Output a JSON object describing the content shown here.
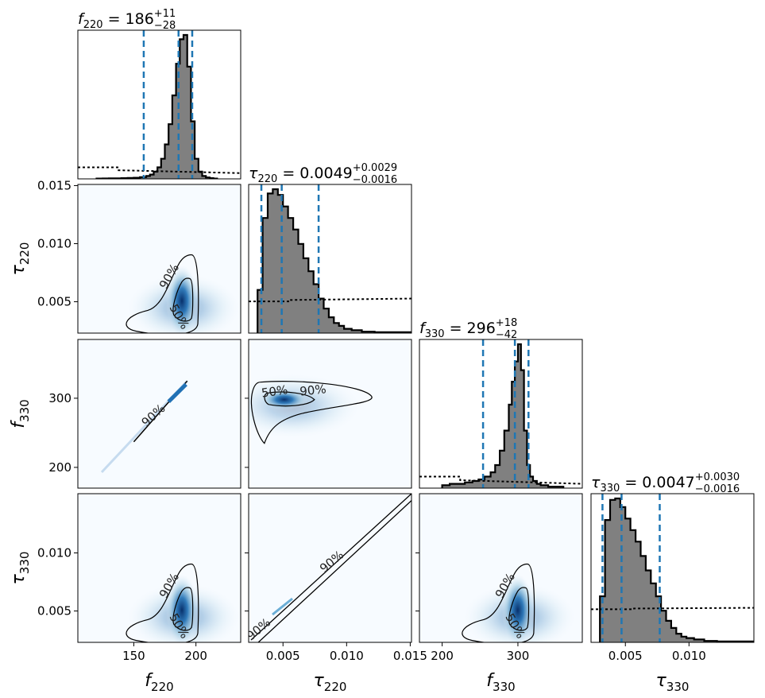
{
  "chart_data": {
    "type": "corner",
    "parameters": [
      {
        "id": "f220",
        "symbol": "f",
        "sub": "220",
        "range": [
          105,
          236
        ],
        "ticks": [
          150,
          200
        ],
        "tick_labels": [
          "150",
          "200"
        ],
        "title": {
          "median": "186",
          "plus": "+11",
          "minus": "−28"
        },
        "quantiles": [
          158,
          186,
          197
        ]
      },
      {
        "id": "tau220",
        "symbol": "τ",
        "sub": "220",
        "range": [
          0.0023,
          0.0151
        ],
        "ticks": [
          0.005,
          0.01,
          0.015
        ],
        "tick_labels": [
          "0.005",
          "0.010",
          "0.015"
        ],
        "title": {
          "median": "0.0049",
          "plus": "+0.0029",
          "minus": "−0.0016"
        },
        "quantiles": [
          0.0033,
          0.0049,
          0.0078
        ]
      },
      {
        "id": "f330",
        "symbol": "f",
        "sub": "330",
        "range": [
          170,
          385
        ],
        "ticks": [
          200,
          300
        ],
        "tick_labels": [
          "200",
          "300"
        ],
        "title": {
          "median": "296",
          "plus": "+18",
          "minus": "−42"
        },
        "quantiles": [
          254,
          296,
          314
        ]
      },
      {
        "id": "tau330",
        "symbol": "τ",
        "sub": "330",
        "range": [
          0.0023,
          0.0151
        ],
        "ticks": [
          0.005,
          0.01
        ],
        "tick_labels": [
          "0.005",
          "0.010"
        ],
        "title": {
          "median": "0.0047",
          "plus": "+0.0030",
          "minus": "−0.0016"
        },
        "quantiles": [
          0.0032,
          0.0047,
          0.0077
        ]
      }
    ],
    "diag_y_ticks": {
      "param": "tau220",
      "ticks": [
        0.005,
        0.01,
        0.015
      ]
    },
    "histograms": [
      {
        "param": "f220",
        "bins": [
          120,
          125,
          130,
          135,
          140,
          145,
          150,
          155,
          160,
          163,
          166,
          169,
          172,
          175,
          178,
          181,
          184,
          187,
          190,
          193,
          196,
          199,
          202,
          205,
          208,
          211,
          214
        ],
        "heights": [
          0.2,
          0.3,
          0.4,
          0.4,
          0.5,
          0.6,
          0.8,
          1.2,
          2,
          3,
          5,
          8,
          14,
          24,
          38,
          58,
          80,
          97,
          100,
          78,
          40,
          14,
          5,
          2,
          1,
          0.5,
          0.2
        ]
      },
      {
        "param": "tau220",
        "bins": [
          0.003,
          0.0034,
          0.0038,
          0.0042,
          0.0046,
          0.005,
          0.0054,
          0.0058,
          0.0062,
          0.0066,
          0.007,
          0.0074,
          0.0078,
          0.0082,
          0.0086,
          0.009,
          0.0094,
          0.0098,
          0.0104,
          0.0112,
          0.0122,
          0.015
        ],
        "heights": [
          30,
          80,
          97,
          100,
          96,
          88,
          80,
          72,
          62,
          52,
          43,
          34,
          24,
          17,
          11,
          7,
          5,
          3,
          2,
          1,
          0.6,
          0.4
        ]
      },
      {
        "param": "f330",
        "bins": [
          200,
          210,
          220,
          230,
          240,
          248,
          256,
          264,
          270,
          276,
          282,
          288,
          292,
          296,
          300,
          304,
          308,
          312,
          316,
          320,
          325,
          330,
          340,
          350
        ],
        "heights": [
          2,
          3,
          3,
          4,
          5,
          6,
          8,
          11,
          16,
          26,
          40,
          58,
          74,
          88,
          100,
          82,
          40,
          16,
          8,
          5,
          3,
          2,
          1,
          1
        ]
      },
      {
        "param": "tau330",
        "bins": [
          0.003,
          0.0034,
          0.0038,
          0.0042,
          0.0046,
          0.005,
          0.0054,
          0.0058,
          0.0062,
          0.0066,
          0.007,
          0.0074,
          0.0078,
          0.0082,
          0.0086,
          0.009,
          0.0094,
          0.0098,
          0.0104,
          0.0112,
          0.0122,
          0.015
        ],
        "heights": [
          32,
          85,
          99,
          100,
          94,
          86,
          78,
          70,
          60,
          50,
          41,
          32,
          22,
          15,
          10,
          6,
          4,
          3,
          2,
          1,
          0.6,
          0.4
        ]
      }
    ],
    "priors_dotted": [
      {
        "param": "f220",
        "left_level": 8,
        "right_level": 4
      },
      {
        "param": "tau220",
        "left_level": 22,
        "right_level": 24
      },
      {
        "param": "f330",
        "left_level": 8,
        "right_level": 3
      },
      {
        "param": "tau330",
        "left_level": 23,
        "right_level": 24
      }
    ],
    "contour_levels": [
      "50%",
      "90%"
    ],
    "colors": {
      "hist_fill": "#808080",
      "hist_edge": "#000000",
      "quantile_line": "#1f77b4",
      "density": "#08519c"
    }
  }
}
